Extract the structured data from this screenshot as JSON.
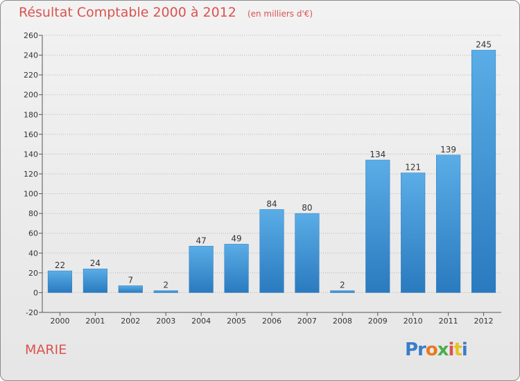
{
  "chart_data": {
    "type": "bar",
    "title": "Résultat Comptable 2000 à 2012",
    "subtitle": "(en milliers d'€)",
    "categories": [
      "2000",
      "2001",
      "2002",
      "2003",
      "2004",
      "2005",
      "2006",
      "2007",
      "2008",
      "2009",
      "2010",
      "2011",
      "2012"
    ],
    "values": [
      22,
      24,
      7,
      2,
      47,
      49,
      84,
      80,
      2,
      134,
      121,
      139,
      245
    ],
    "ylim": [
      -20,
      260
    ],
    "yticks": [
      -20,
      0,
      20,
      40,
      60,
      80,
      100,
      120,
      140,
      160,
      180,
      200,
      220,
      240,
      260
    ],
    "xlabel": "",
    "ylabel": "",
    "grid": true
  },
  "commune": "MARIE",
  "logo": [
    "Pr",
    "o",
    "x",
    "i",
    "t",
    "i"
  ],
  "colors": {
    "title": "#d9534f",
    "bar_top": "#5aade6",
    "bar_bottom": "#2a7abf"
  }
}
